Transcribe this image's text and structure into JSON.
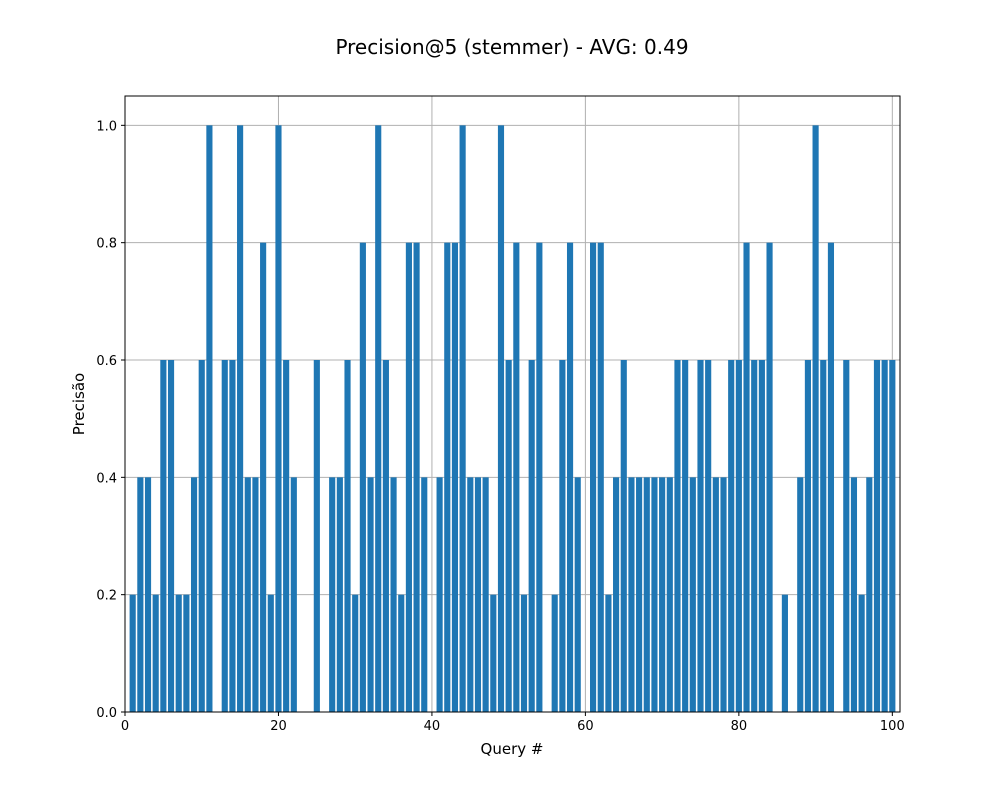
{
  "chart_data": {
    "type": "bar",
    "title": "Precision@5 (stemmer) - AVG: 0.49",
    "xlabel": "Query #",
    "ylabel": "Precisão",
    "xlim": [
      0,
      101
    ],
    "ylim": [
      0,
      1.05
    ],
    "xticks": [
      "0",
      "20",
      "40",
      "60",
      "80",
      "100"
    ],
    "yticks": [
      "0.0",
      "0.2",
      "0.4",
      "0.6",
      "0.8",
      "1.0"
    ],
    "grid": true,
    "bar_color": "#1f77b4",
    "x": [
      1,
      2,
      3,
      4,
      5,
      6,
      7,
      8,
      9,
      10,
      11,
      12,
      13,
      14,
      15,
      16,
      17,
      18,
      19,
      20,
      21,
      22,
      23,
      24,
      25,
      26,
      27,
      28,
      29,
      30,
      31,
      32,
      33,
      34,
      35,
      36,
      37,
      38,
      39,
      40,
      41,
      42,
      43,
      44,
      45,
      46,
      47,
      48,
      49,
      50,
      51,
      52,
      53,
      54,
      55,
      56,
      57,
      58,
      59,
      60,
      61,
      62,
      63,
      64,
      65,
      66,
      67,
      68,
      69,
      70,
      71,
      72,
      73,
      74,
      75,
      76,
      77,
      78,
      79,
      80,
      81,
      82,
      83,
      84,
      85,
      86,
      87,
      88,
      89,
      90,
      91,
      92,
      93,
      94,
      95,
      96,
      97,
      98,
      99,
      100
    ],
    "values": [
      0.2,
      0.4,
      0.4,
      0.2,
      0.6,
      0.6,
      0.2,
      0.2,
      0.4,
      0.6,
      1.0,
      0.0,
      0.6,
      0.6,
      1.0,
      0.4,
      0.4,
      0.8,
      0.2,
      1.0,
      0.6,
      0.4,
      0.0,
      0.0,
      0.6,
      0.0,
      0.4,
      0.4,
      0.6,
      0.2,
      0.8,
      0.4,
      1.0,
      0.6,
      0.4,
      0.2,
      0.8,
      0.8,
      0.4,
      0.0,
      0.4,
      0.8,
      0.8,
      1.0,
      0.4,
      0.4,
      0.4,
      0.2,
      1.0,
      0.6,
      0.8,
      0.2,
      0.6,
      0.8,
      0.0,
      0.2,
      0.6,
      0.8,
      0.4,
      0.0,
      0.8,
      0.8,
      0.2,
      0.4,
      0.6,
      0.4,
      0.4,
      0.4,
      0.4,
      0.4,
      0.4,
      0.6,
      0.6,
      0.4,
      0.6,
      0.6,
      0.4,
      0.4,
      0.6,
      0.6,
      0.8,
      0.6,
      0.6,
      0.8,
      0.0,
      0.2,
      0.0,
      0.4,
      0.6,
      1.0,
      0.6,
      0.8,
      0.0,
      0.6,
      0.4,
      0.2,
      0.4,
      0.6,
      0.6,
      0.6
    ]
  }
}
